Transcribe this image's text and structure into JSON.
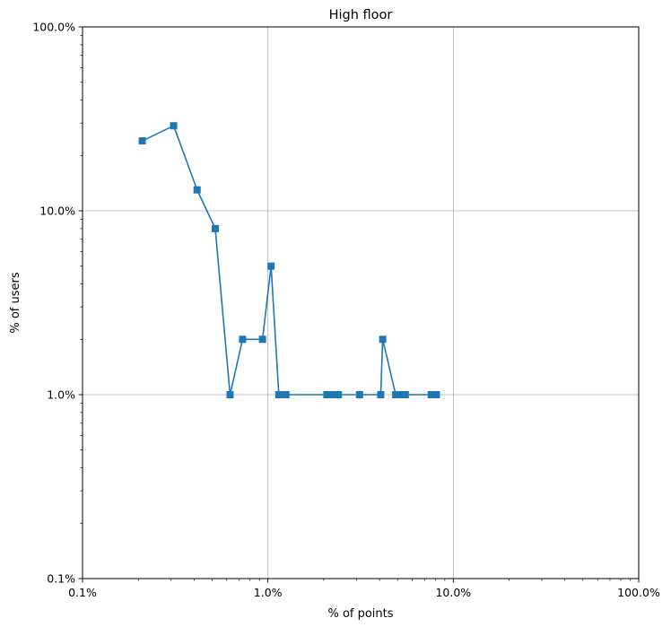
{
  "chart_data": {
    "type": "line",
    "title": "High floor",
    "xlabel": "% of points",
    "ylabel": "% of users",
    "xscale": "log",
    "yscale": "log",
    "xlim": [
      0.1,
      100
    ],
    "ylim": [
      0.1,
      100
    ],
    "grid": true,
    "x_ticks": [
      {
        "value": 0.1,
        "label": "0.1%"
      },
      {
        "value": 1,
        "label": "1.0%"
      },
      {
        "value": 10,
        "label": "10.0%"
      },
      {
        "value": 100,
        "label": "100.0%"
      }
    ],
    "y_ticks": [
      {
        "value": 0.1,
        "label": "0.1%"
      },
      {
        "value": 1,
        "label": "1.0%"
      },
      {
        "value": 10,
        "label": "10.0%"
      },
      {
        "value": 100,
        "label": "100.0%"
      }
    ],
    "series": [
      {
        "color": "#1f77b4",
        "marker": "square",
        "x": [
          0.21,
          0.31,
          0.415,
          0.52,
          0.625,
          0.73,
          0.935,
          1.04,
          1.145,
          1.25,
          2.08,
          2.19,
          2.29,
          2.4,
          3.12,
          4.06,
          4.16,
          4.89,
          5.1,
          5.3,
          5.51,
          7.6,
          7.8,
          8.1
        ],
        "y": [
          24,
          29,
          13,
          8,
          1,
          2,
          2,
          5,
          1,
          1,
          1,
          1,
          1,
          1,
          1,
          1,
          2,
          1,
          1,
          1,
          1,
          1,
          1,
          1
        ]
      }
    ]
  }
}
